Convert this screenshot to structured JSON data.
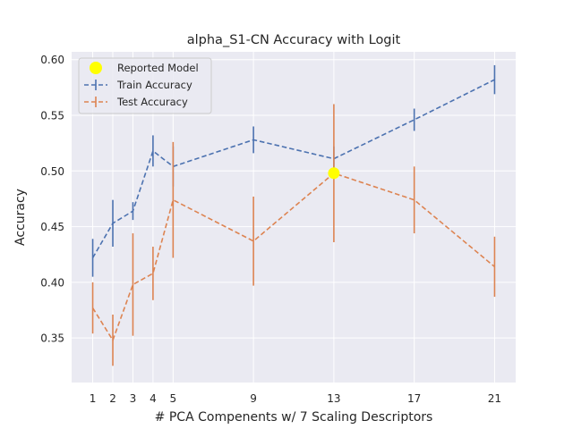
{
  "chart_data": {
    "type": "line",
    "title": "alpha_S1-CN Accuracy with Logit",
    "xlabel": "# PCA Compenents w/ 7 Scaling Descriptors",
    "ylabel": "Accuracy",
    "x": [
      1,
      2,
      3,
      4,
      5,
      9,
      13,
      17,
      21
    ],
    "xlim": [
      -0.05,
      22.05
    ],
    "ylim": [
      0.31,
      0.607
    ],
    "yticks": [
      0.35,
      0.4,
      0.45,
      0.5,
      0.55,
      0.6
    ],
    "ytick_labels": [
      "0.35",
      "0.40",
      "0.45",
      "0.50",
      "0.55",
      "0.60"
    ],
    "xtick_labels": [
      "1",
      "2",
      "3",
      "4",
      "5",
      "9",
      "13",
      "17",
      "21"
    ],
    "grid": true,
    "legend_position": "upper-left",
    "background": "#eaeaf2",
    "series": [
      {
        "name": "Train Accuracy",
        "color": "#4c72b0",
        "values": [
          0.422,
          0.453,
          0.464,
          0.518,
          0.504,
          0.528,
          0.511,
          0.546,
          0.582
        ],
        "errors": [
          0.017,
          0.021,
          0.008,
          0.014,
          0.018,
          0.012,
          0.011,
          0.01,
          0.013
        ]
      },
      {
        "name": "Test Accuracy",
        "color": "#dd8452",
        "values": [
          0.377,
          0.348,
          0.398,
          0.408,
          0.474,
          0.437,
          0.498,
          0.474,
          0.414
        ],
        "errors": [
          0.023,
          0.023,
          0.046,
          0.024,
          0.052,
          0.04,
          0.062,
          0.03,
          0.027
        ]
      }
    ],
    "highlight": {
      "name": "Reported Model",
      "x": 13,
      "y": 0.498,
      "color": "#ffff00"
    }
  }
}
